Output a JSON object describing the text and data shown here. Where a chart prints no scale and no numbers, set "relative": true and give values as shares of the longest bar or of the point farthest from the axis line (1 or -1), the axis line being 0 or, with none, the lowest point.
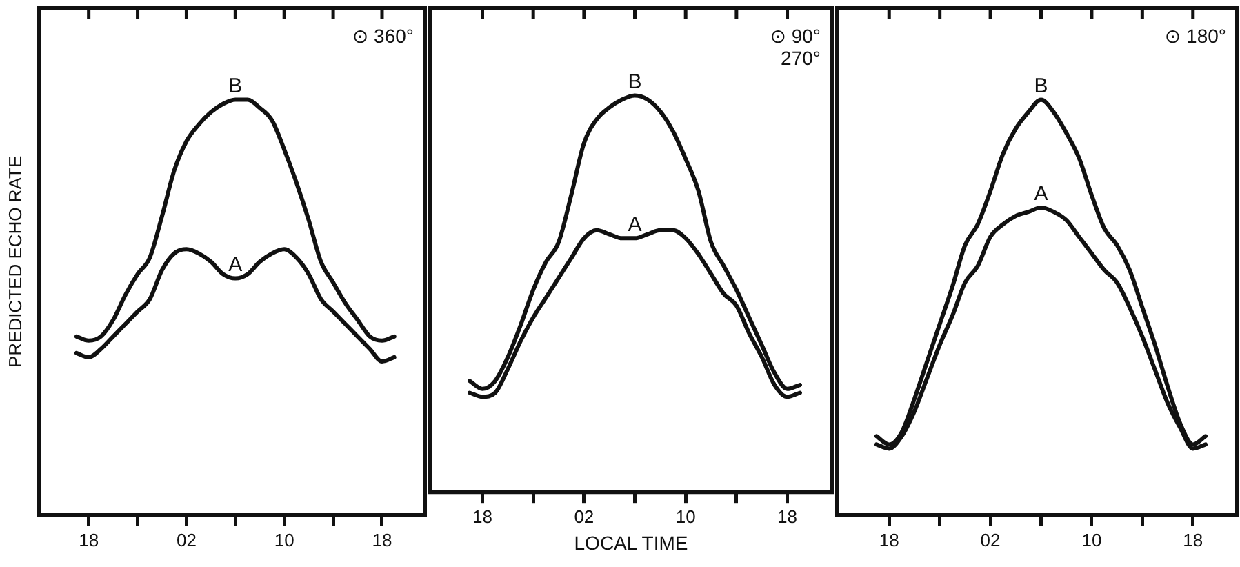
{
  "chart_data": [
    {
      "type": "line",
      "relative": true,
      "ylabel": "PREDICTED ECHO RATE",
      "annotations": [
        "⊙ 360°"
      ],
      "tick_labels": "x",
      "categories": [
        null,
        "18",
        null,
        null,
        null,
        null,
        null,
        null,
        null,
        "02",
        null,
        null,
        null,
        null,
        null,
        null,
        null,
        "10",
        null,
        null,
        null,
        null,
        null,
        null,
        null,
        "18",
        null
      ],
      "series": [
        {
          "name": "B",
          "color": "#111111",
          "values": [
            0.43,
            0.42,
            0.43,
            0.47,
            0.53,
            0.58,
            0.62,
            0.72,
            0.83,
            0.9,
            0.94,
            0.97,
            0.99,
            1.0,
            1.0,
            0.98,
            0.95,
            0.88,
            0.8,
            0.71,
            0.61,
            0.56,
            0.51,
            0.47,
            0.43,
            0.42,
            0.43
          ]
        },
        {
          "name": "A",
          "color": "#111111",
          "values": [
            0.39,
            0.38,
            0.4,
            0.43,
            0.46,
            0.49,
            0.52,
            0.59,
            0.63,
            0.64,
            0.63,
            0.61,
            0.58,
            0.57,
            0.58,
            0.61,
            0.63,
            0.64,
            0.62,
            0.58,
            0.52,
            0.49,
            0.46,
            0.43,
            0.4,
            0.37,
            0.38
          ]
        }
      ]
    },
    {
      "type": "line",
      "relative": true,
      "xlabel": "LOCAL TIME",
      "annotations": [
        "⊙ 90°\n270°"
      ],
      "tick_labels": "x",
      "categories": [
        null,
        "18",
        null,
        null,
        null,
        null,
        null,
        null,
        null,
        "02",
        null,
        null,
        null,
        null,
        null,
        null,
        null,
        "10",
        null,
        null,
        null,
        null,
        null,
        null,
        null,
        "18",
        null
      ],
      "series": [
        {
          "name": "B",
          "color": "#111111",
          "values": [
            0.28,
            0.26,
            0.28,
            0.34,
            0.42,
            0.51,
            0.58,
            0.63,
            0.75,
            0.88,
            0.94,
            0.97,
            0.99,
            1.0,
            0.99,
            0.96,
            0.91,
            0.84,
            0.76,
            0.63,
            0.57,
            0.51,
            0.44,
            0.37,
            0.3,
            0.26,
            0.27
          ]
        },
        {
          "name": "A",
          "color": "#111111",
          "values": [
            0.25,
            0.24,
            0.25,
            0.31,
            0.38,
            0.44,
            0.49,
            0.54,
            0.59,
            0.64,
            0.66,
            0.65,
            0.64,
            0.64,
            0.65,
            0.66,
            0.66,
            0.64,
            0.6,
            0.55,
            0.5,
            0.47,
            0.4,
            0.34,
            0.27,
            0.24,
            0.25
          ]
        }
      ]
    },
    {
      "type": "line",
      "relative": true,
      "annotations": [
        "⊙ 180°"
      ],
      "tick_labels": "x",
      "categories": [
        null,
        "18",
        null,
        null,
        null,
        null,
        null,
        null,
        null,
        "02",
        null,
        null,
        null,
        null,
        null,
        null,
        null,
        "10",
        null,
        null,
        null,
        null,
        null,
        null,
        null,
        "18",
        null
      ],
      "series": [
        {
          "name": "B",
          "color": "#111111",
          "values": [
            0.19,
            0.17,
            0.2,
            0.28,
            0.37,
            0.46,
            0.55,
            0.65,
            0.7,
            0.78,
            0.87,
            0.93,
            0.97,
            1.0,
            0.97,
            0.92,
            0.86,
            0.77,
            0.69,
            0.65,
            0.59,
            0.5,
            0.41,
            0.31,
            0.22,
            0.17,
            0.19
          ]
        },
        {
          "name": "A",
          "color": "#111111",
          "values": [
            0.17,
            0.16,
            0.19,
            0.25,
            0.33,
            0.41,
            0.48,
            0.56,
            0.6,
            0.67,
            0.7,
            0.72,
            0.73,
            0.74,
            0.73,
            0.71,
            0.67,
            0.63,
            0.59,
            0.56,
            0.5,
            0.43,
            0.35,
            0.27,
            0.21,
            0.16,
            0.17
          ]
        }
      ]
    }
  ]
}
